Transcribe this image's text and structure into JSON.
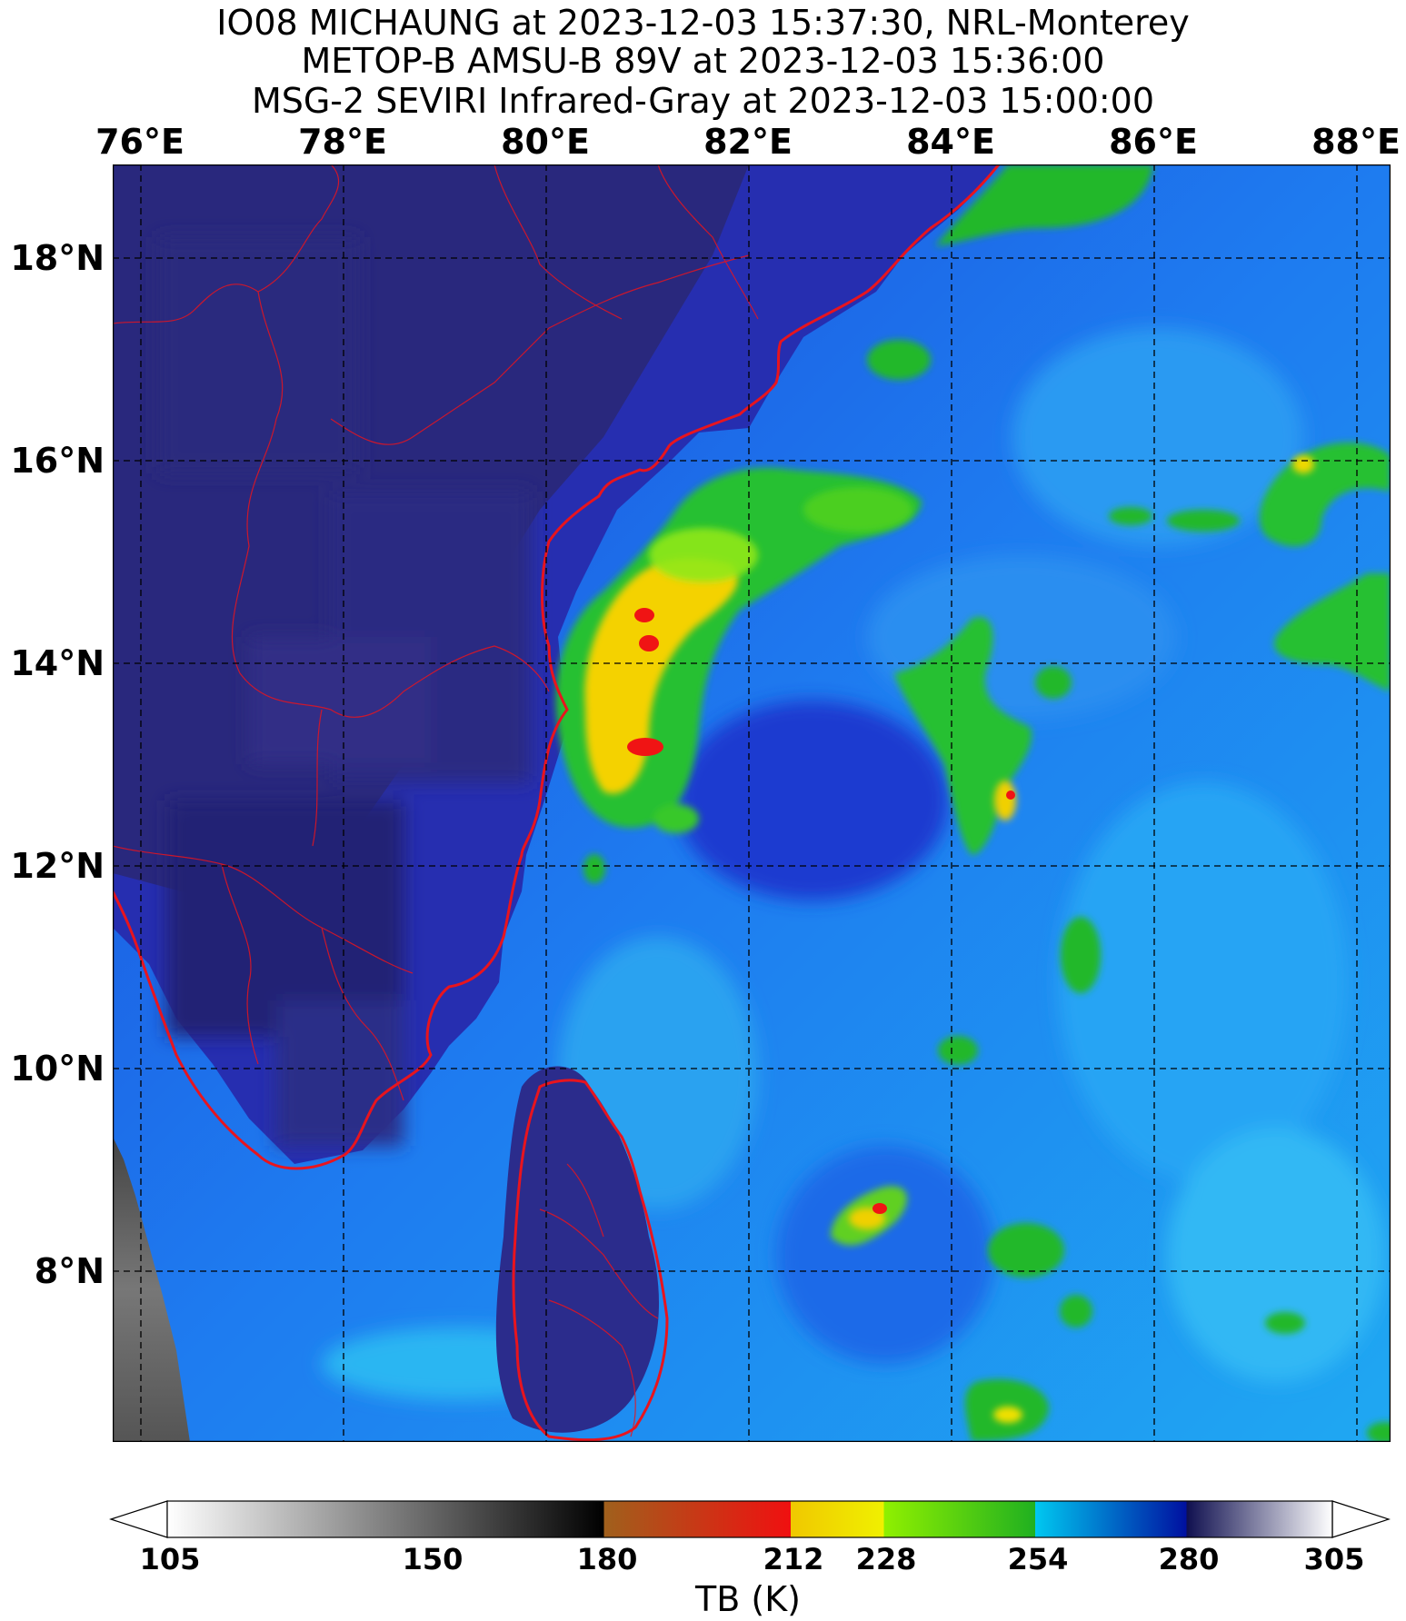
{
  "titles": [
    "IO08 MICHAUNG at 2023-12-03 15:37:30, NRL-Monterey",
    "METOP-B AMSU-B 89V at 2023-12-03 15:36:00",
    "MSG-2 SEVIRI Infrared-Gray at 2023-12-03 15:00:00"
  ],
  "map": {
    "lon_range": [
      75.7,
      88.3
    ],
    "lat_range": [
      6.3,
      18.9
    ],
    "lon_labels": [
      "76°E",
      "78°E",
      "80°E",
      "82°E",
      "84°E",
      "86°E",
      "88°E"
    ],
    "lat_labels": [
      "18°N",
      "16°N",
      "14°N",
      "12°N",
      "10°N",
      "8°N"
    ],
    "gridlines": "dashed",
    "coastline_color": "#e8141e",
    "storm_features": [
      {
        "name": "main rainband",
        "lon": 81.2,
        "lat": 13.8,
        "peak_tb": "<212"
      },
      {
        "name": "outer band",
        "lon": 84.6,
        "lat": 12.8,
        "peak_tb": "<212"
      },
      {
        "name": "southern cell",
        "lon": 83.2,
        "lat": 8.6,
        "peak_tb": "<212"
      }
    ]
  },
  "colorbar": {
    "ticks": [
      "105",
      "150",
      "180",
      "212",
      "228",
      "254",
      "280",
      "305"
    ],
    "tick_values": [
      105,
      150,
      180,
      212,
      228,
      254,
      280,
      305
    ],
    "range": [
      105,
      305
    ],
    "label": "TB (K)",
    "segments": [
      {
        "from": 105,
        "to": 180,
        "colors": [
          "#ffffff",
          "#000000"
        ]
      },
      {
        "from": 180,
        "to": 212,
        "colors": [
          "#a0601c",
          "#f01010"
        ]
      },
      {
        "from": 212,
        "to": 228,
        "colors": [
          "#f0c800",
          "#f0f000"
        ]
      },
      {
        "from": 228,
        "to": 254,
        "colors": [
          "#90f000",
          "#20b020"
        ]
      },
      {
        "from": 254,
        "to": 280,
        "colors": [
          "#00c8f0",
          "#0010a0"
        ]
      },
      {
        "from": 280,
        "to": 305,
        "colors": [
          "#101050",
          "#ffffff"
        ]
      }
    ]
  }
}
